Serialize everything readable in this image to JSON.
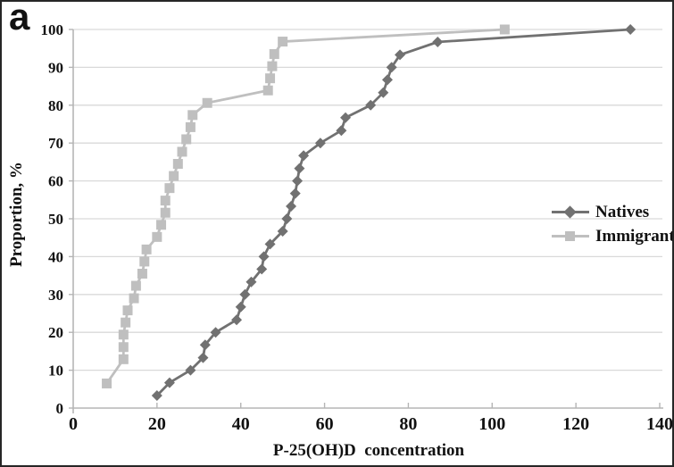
{
  "panel_label": "a",
  "colors": {
    "natives": "#717171",
    "immigrants": "#bfbfbf",
    "grid": "#d9d9d9",
    "axis": "#b5b5b5",
    "text": "#111111",
    "frame_border": "#262626",
    "background": "#ffffff"
  },
  "chart_data": {
    "type": "line",
    "title": "",
    "xlabel": "P-25(OH)D  concentration",
    "ylabel": "Proportion, %",
    "xlim": [
      0,
      140
    ],
    "ylim": [
      0,
      100
    ],
    "x_ticks": [
      0,
      20,
      40,
      60,
      80,
      100,
      120,
      140
    ],
    "y_ticks": [
      0,
      10,
      20,
      30,
      40,
      50,
      60,
      70,
      80,
      90,
      100
    ],
    "grid": "horizontal",
    "legend_position": "right-middle",
    "series": [
      {
        "name": "Natives",
        "marker": "diamond",
        "color": "#717171",
        "points": [
          [
            20,
            3.3
          ],
          [
            23,
            6.7
          ],
          [
            28,
            10
          ],
          [
            31,
            13.3
          ],
          [
            31.5,
            16.7
          ],
          [
            34,
            20
          ],
          [
            39,
            23.3
          ],
          [
            40,
            26.7
          ],
          [
            41,
            30
          ],
          [
            42.5,
            33.3
          ],
          [
            45,
            36.7
          ],
          [
            45.5,
            40
          ],
          [
            47,
            43.3
          ],
          [
            50,
            46.7
          ],
          [
            51,
            50
          ],
          [
            52,
            53.3
          ],
          [
            53,
            56.7
          ],
          [
            53.5,
            60
          ],
          [
            54,
            63.3
          ],
          [
            55,
            66.7
          ],
          [
            59,
            70
          ],
          [
            64,
            73.3
          ],
          [
            65,
            76.7
          ],
          [
            71,
            80
          ],
          [
            74,
            83.3
          ],
          [
            75,
            86.7
          ],
          [
            76,
            90
          ],
          [
            78,
            93.3
          ],
          [
            87,
            96.7
          ],
          [
            133,
            100
          ]
        ]
      },
      {
        "name": "Immigrants",
        "marker": "square",
        "color": "#bfbfbf",
        "points": [
          [
            8,
            6.5
          ],
          [
            12,
            12.9
          ],
          [
            12,
            16.1
          ],
          [
            12,
            19.4
          ],
          [
            12.5,
            22.6
          ],
          [
            13,
            25.8
          ],
          [
            14.5,
            29
          ],
          [
            15,
            32.3
          ],
          [
            16.5,
            35.5
          ],
          [
            17,
            38.7
          ],
          [
            17.5,
            41.9
          ],
          [
            20,
            45.2
          ],
          [
            21,
            48.4
          ],
          [
            22,
            51.6
          ],
          [
            22,
            54.8
          ],
          [
            23,
            58.1
          ],
          [
            24,
            61.3
          ],
          [
            25,
            64.5
          ],
          [
            26,
            67.7
          ],
          [
            27,
            71
          ],
          [
            28,
            74.2
          ],
          [
            28.5,
            77.4
          ],
          [
            32,
            80.6
          ],
          [
            46.5,
            83.9
          ],
          [
            47,
            87.1
          ],
          [
            47.5,
            90.3
          ],
          [
            48,
            93.5
          ],
          [
            50,
            96.8
          ],
          [
            103,
            100
          ]
        ]
      }
    ]
  }
}
